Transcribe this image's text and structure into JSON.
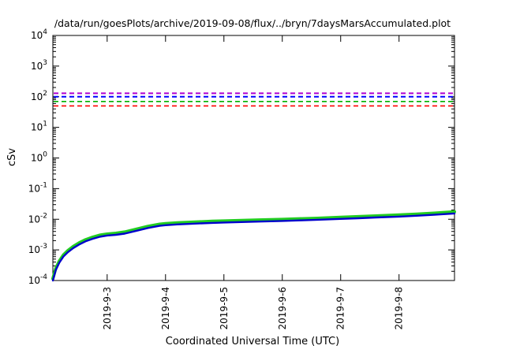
{
  "title": "/data/run/goesPlots/archive/2019-09-08/flux/../bryn/7daysMarsAccumulated.plot",
  "chart_data": {
    "type": "line",
    "title": "/data/run/goesPlots/archive/2019-09-08/flux/../bryn/7daysMarsAccumulated.plot",
    "xlabel": "Coordinated Universal Time (UTC)",
    "ylabel": "cSv",
    "y_scale": "log10",
    "y_exponent_range": [
      -4,
      4
    ],
    "y_tick_exponents": [
      4,
      3,
      2,
      1,
      0,
      -1,
      -2,
      -3,
      -4
    ],
    "xlim": [
      0.07,
      6.95
    ],
    "grid": "off",
    "legend": "none",
    "x_ticks": [
      {
        "x": 1,
        "label": "2019-9-3"
      },
      {
        "x": 2,
        "label": "2019-9-4"
      },
      {
        "x": 3,
        "label": "2019-9-5"
      },
      {
        "x": 4,
        "label": "2019-9-6"
      },
      {
        "x": 5,
        "label": "2019-9-7"
      },
      {
        "x": 6,
        "label": "2019-9-8"
      }
    ],
    "threshold_lines": [
      {
        "name": "limit-magenta",
        "value": 130,
        "color": "#b000d0",
        "style": "dashed",
        "width": 2
      },
      {
        "name": "limit-blue",
        "value": 100,
        "color": "#0000ff",
        "style": "dashed",
        "width": 2
      },
      {
        "name": "limit-green",
        "value": 70,
        "color": "#00b000",
        "style": "dashed",
        "width": 1.6
      },
      {
        "name": "limit-red",
        "value": 50,
        "color": "#ff0000",
        "style": "dashed",
        "width": 1.6
      }
    ],
    "series": [
      {
        "name": "accumulated-dose-green",
        "color": "#22cc22",
        "width": 4,
        "x": [
          0.07,
          0.12,
          0.18,
          0.25,
          0.33,
          0.42,
          0.52,
          0.63,
          0.75,
          0.88,
          1.0,
          1.15,
          1.3,
          1.5,
          1.7,
          1.9,
          2.0,
          2.2,
          2.5,
          2.8,
          3.0,
          3.3,
          3.6,
          4.0,
          4.3,
          4.6,
          5.0,
          5.3,
          5.6,
          6.0,
          6.3,
          6.6,
          6.95
        ],
        "y": [
          0.000115,
          0.00025,
          0.00043,
          0.00068,
          0.00096,
          0.0013,
          0.0017,
          0.00215,
          0.0026,
          0.00305,
          0.0033,
          0.0035,
          0.00385,
          0.00475,
          0.0059,
          0.0069,
          0.0072,
          0.0077,
          0.0081,
          0.0086,
          0.0088,
          0.00915,
          0.0095,
          0.0099,
          0.0104,
          0.0108,
          0.0116,
          0.0122,
          0.0129,
          0.0138,
          0.0147,
          0.0158,
          0.0175
        ]
      },
      {
        "name": "accumulated-dose-blue",
        "color": "#0000cc",
        "width": 2.4,
        "x": [
          0.07,
          0.12,
          0.18,
          0.25,
          0.33,
          0.42,
          0.52,
          0.63,
          0.75,
          0.88,
          1.0,
          1.15,
          1.3,
          1.5,
          1.7,
          1.9,
          2.0,
          2.2,
          2.5,
          2.8,
          3.0,
          3.3,
          3.6,
          4.0,
          4.3,
          4.6,
          5.0,
          5.3,
          5.6,
          6.0,
          6.3,
          6.6,
          6.95
        ],
        "y": [
          0.0001,
          0.00022,
          0.00038,
          0.0006,
          0.00085,
          0.00115,
          0.0015,
          0.0019,
          0.0023,
          0.0027,
          0.00295,
          0.0031,
          0.0034,
          0.0042,
          0.0052,
          0.0061,
          0.0064,
          0.0068,
          0.0072,
          0.0076,
          0.0078,
          0.0081,
          0.0084,
          0.0088,
          0.0092,
          0.0096,
          0.0103,
          0.0108,
          0.0114,
          0.0122,
          0.013,
          0.014,
          0.0155
        ]
      }
    ]
  }
}
